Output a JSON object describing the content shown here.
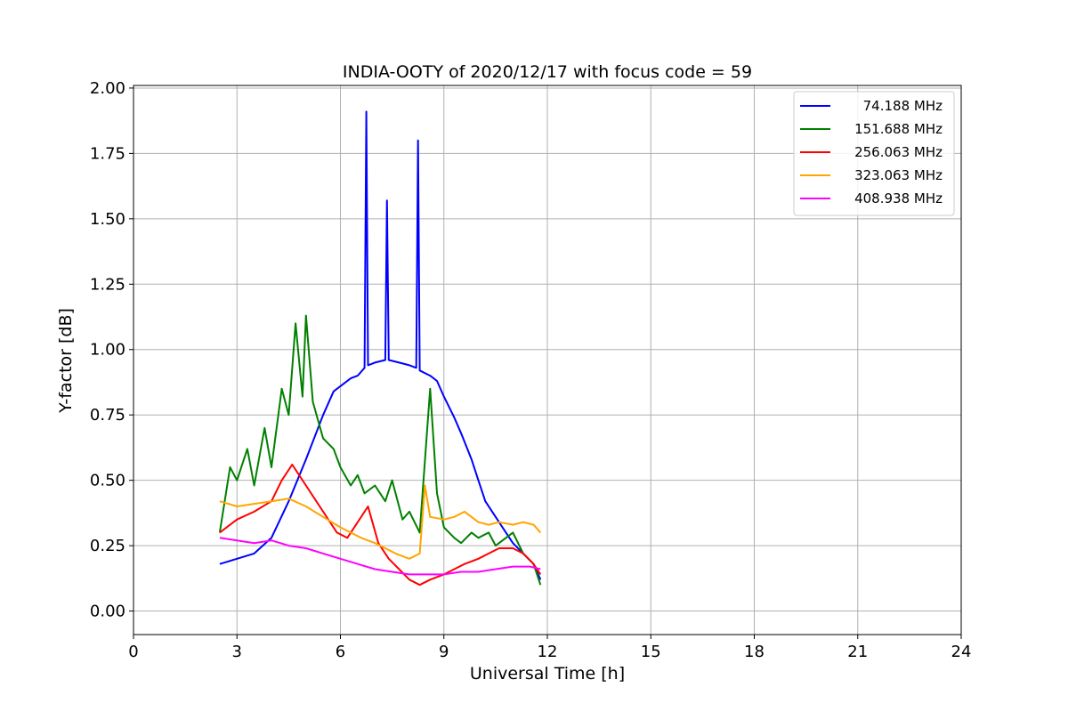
{
  "chart_data": {
    "type": "line",
    "title": "INDIA-OOTY of 2020/12/17 with focus code = 59",
    "xlabel": "Universal Time [h]",
    "ylabel": "Y-factor [dB]",
    "xlim": [
      0,
      24
    ],
    "ylim": [
      -0.09,
      2.01
    ],
    "xticks": [
      0,
      3,
      6,
      9,
      12,
      15,
      18,
      21,
      24
    ],
    "xtick_labels": [
      "0",
      "3",
      "6",
      "9",
      "12",
      "15",
      "18",
      "21",
      "24"
    ],
    "yticks": [
      0.0,
      0.25,
      0.5,
      0.75,
      1.0,
      1.25,
      1.5,
      1.75,
      2.0
    ],
    "ytick_labels": [
      "0.00",
      "0.25",
      "0.50",
      "0.75",
      "1.00",
      "1.25",
      "1.50",
      "1.75",
      "2.00"
    ],
    "grid": true,
    "legend_position": "top-right",
    "series": [
      {
        "name": "74.188 MHz",
        "color": "#0000ff",
        "x": [
          2.5,
          3.0,
          3.5,
          4.0,
          4.5,
          5.0,
          5.5,
          5.8,
          6.0,
          6.3,
          6.5,
          6.7,
          6.75,
          6.8,
          7.0,
          7.3,
          7.35,
          7.4,
          7.7,
          8.0,
          8.2,
          8.25,
          8.3,
          8.6,
          8.8,
          9.0,
          9.3,
          9.5,
          9.8,
          10.0,
          10.2,
          10.5,
          10.8,
          11.0,
          11.3,
          11.6,
          11.8
        ],
        "y": [
          0.18,
          0.2,
          0.22,
          0.28,
          0.42,
          0.58,
          0.75,
          0.84,
          0.86,
          0.89,
          0.9,
          0.93,
          1.91,
          0.94,
          0.95,
          0.96,
          1.57,
          0.96,
          0.95,
          0.94,
          0.93,
          1.8,
          0.92,
          0.9,
          0.88,
          0.82,
          0.74,
          0.68,
          0.58,
          0.5,
          0.42,
          0.36,
          0.3,
          0.26,
          0.22,
          0.18,
          0.12
        ]
      },
      {
        "name": "151.688 MHz",
        "color": "#008000",
        "x": [
          2.5,
          2.8,
          3.0,
          3.3,
          3.5,
          3.8,
          4.0,
          4.3,
          4.5,
          4.7,
          4.9,
          5.0,
          5.2,
          5.5,
          5.8,
          6.0,
          6.3,
          6.5,
          6.7,
          7.0,
          7.3,
          7.5,
          7.8,
          8.0,
          8.3,
          8.6,
          8.8,
          9.0,
          9.3,
          9.5,
          9.8,
          10.0,
          10.3,
          10.5,
          10.8,
          11.0,
          11.3,
          11.6,
          11.8
        ],
        "y": [
          0.3,
          0.55,
          0.5,
          0.62,
          0.48,
          0.7,
          0.55,
          0.85,
          0.75,
          1.1,
          0.82,
          1.13,
          0.8,
          0.66,
          0.62,
          0.55,
          0.48,
          0.52,
          0.45,
          0.48,
          0.42,
          0.5,
          0.35,
          0.38,
          0.3,
          0.85,
          0.45,
          0.32,
          0.28,
          0.26,
          0.3,
          0.28,
          0.3,
          0.25,
          0.28,
          0.3,
          0.22,
          0.18,
          0.1
        ]
      },
      {
        "name": "256.063 MHz",
        "color": "#ff0000",
        "x": [
          2.5,
          3.0,
          3.5,
          4.0,
          4.3,
          4.6,
          5.0,
          5.3,
          5.6,
          5.9,
          6.2,
          6.5,
          6.8,
          7.1,
          7.4,
          7.7,
          8.0,
          8.3,
          8.6,
          9.0,
          9.3,
          9.6,
          10.0,
          10.3,
          10.6,
          11.0,
          11.3,
          11.6,
          11.8
        ],
        "y": [
          0.3,
          0.35,
          0.38,
          0.42,
          0.5,
          0.56,
          0.48,
          0.42,
          0.36,
          0.3,
          0.28,
          0.34,
          0.4,
          0.26,
          0.2,
          0.16,
          0.12,
          0.1,
          0.12,
          0.14,
          0.16,
          0.18,
          0.2,
          0.22,
          0.24,
          0.24,
          0.22,
          0.18,
          0.14
        ]
      },
      {
        "name": "323.063 MHz",
        "color": "#ffa500",
        "x": [
          2.5,
          3.0,
          3.5,
          4.0,
          4.5,
          5.0,
          5.5,
          6.0,
          6.3,
          6.6,
          7.0,
          7.3,
          7.6,
          8.0,
          8.3,
          8.45,
          8.6,
          9.0,
          9.3,
          9.6,
          10.0,
          10.3,
          10.6,
          11.0,
          11.3,
          11.6,
          11.8
        ],
        "y": [
          0.42,
          0.4,
          0.41,
          0.42,
          0.43,
          0.4,
          0.36,
          0.32,
          0.3,
          0.28,
          0.26,
          0.24,
          0.22,
          0.2,
          0.22,
          0.48,
          0.36,
          0.35,
          0.36,
          0.38,
          0.34,
          0.33,
          0.34,
          0.33,
          0.34,
          0.33,
          0.3
        ]
      },
      {
        "name": "408.938 MHz",
        "color": "#ff00ff",
        "x": [
          2.5,
          3.0,
          3.5,
          4.0,
          4.5,
          5.0,
          5.5,
          6.0,
          6.5,
          7.0,
          7.5,
          8.0,
          8.5,
          9.0,
          9.5,
          10.0,
          10.5,
          11.0,
          11.5,
          11.8
        ],
        "y": [
          0.28,
          0.27,
          0.26,
          0.27,
          0.25,
          0.24,
          0.22,
          0.2,
          0.18,
          0.16,
          0.15,
          0.14,
          0.14,
          0.14,
          0.15,
          0.15,
          0.16,
          0.17,
          0.17,
          0.16
        ]
      }
    ]
  }
}
